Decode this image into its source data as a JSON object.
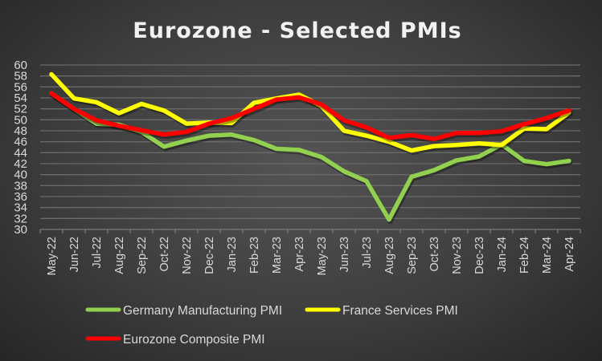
{
  "chart_data": {
    "type": "line",
    "title": "Eurozone - Selected PMIs",
    "xlabel": "",
    "ylabel": "",
    "ylim": [
      30,
      60
    ],
    "yticks": [
      30,
      32,
      34,
      36,
      38,
      40,
      42,
      44,
      46,
      48,
      50,
      52,
      54,
      56,
      58,
      60
    ],
    "grid": true,
    "legend_position": "bottom",
    "categories": [
      "May-22",
      "Jun-22",
      "Jul-22",
      "Aug-22",
      "Sep-22",
      "Oct-22",
      "Nov-22",
      "Dec-22",
      "Jan-23",
      "Feb-23",
      "Mar-23",
      "Apr-23",
      "May-23",
      "Jun-23",
      "Jul-23",
      "Aug-23",
      "Sep-23",
      "Oct-23",
      "Nov-23",
      "Dec-23",
      "Jan-24",
      "Feb-24",
      "Mar-24",
      "Apr-24"
    ],
    "series": [
      {
        "name": "Germany Manufacturing PMI",
        "color": "#92d050",
        "values": [
          54.8,
          52.0,
          49.3,
          49.1,
          47.8,
          45.1,
          46.2,
          47.1,
          47.3,
          46.3,
          44.7,
          44.5,
          43.2,
          40.6,
          38.8,
          31.8,
          39.6,
          40.8,
          42.6,
          43.3,
          45.5,
          42.5,
          41.9,
          42.5
        ]
      },
      {
        "name": "France Services PMI",
        "color": "#ffff00",
        "values": [
          58.3,
          53.9,
          53.2,
          51.2,
          52.9,
          51.7,
          49.3,
          49.5,
          49.4,
          53.1,
          53.9,
          54.6,
          52.5,
          48.0,
          47.1,
          46.0,
          44.4,
          45.2,
          45.4,
          45.7,
          45.4,
          48.4,
          48.3,
          51.3
        ]
      },
      {
        "name": "Eurozone Composite PMI",
        "color": "#ff0000",
        "values": [
          54.8,
          52.0,
          49.9,
          48.9,
          48.1,
          47.3,
          47.8,
          49.3,
          50.3,
          52.0,
          53.7,
          54.1,
          52.8,
          49.9,
          48.6,
          46.7,
          47.2,
          46.5,
          47.6,
          47.6,
          47.9,
          49.2,
          50.3,
          51.7
        ]
      }
    ]
  }
}
